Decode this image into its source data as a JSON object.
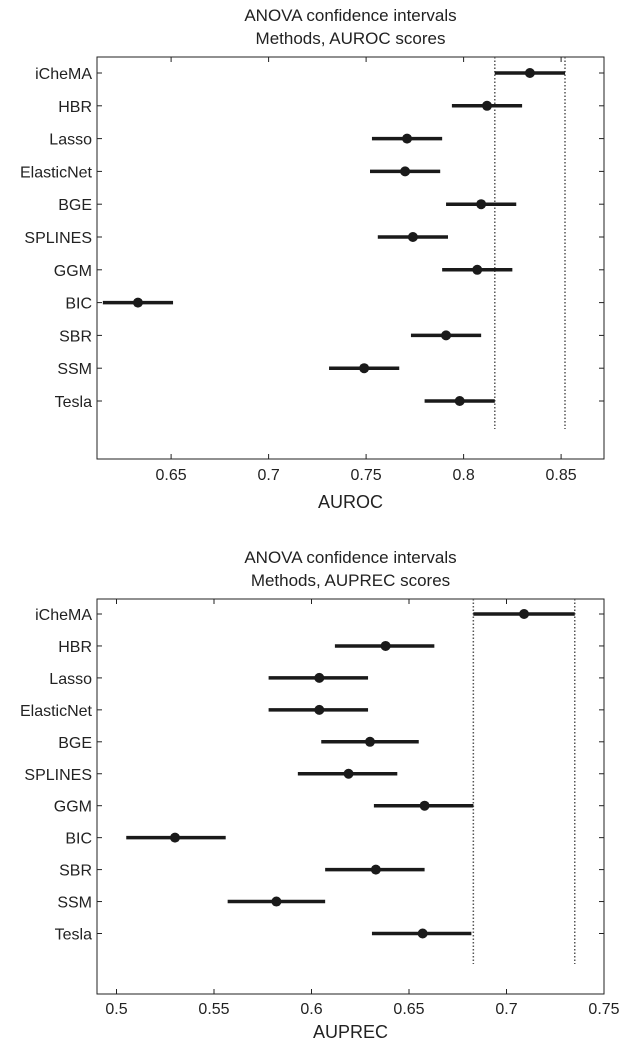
{
  "chart_data": [
    {
      "type": "errorbar",
      "title": "ANOVA confidence intervals",
      "subtitle": "Methods, AUROC scores",
      "xlabel": "AUROC",
      "ylabel": "",
      "xlim": [
        0.612,
        0.872
      ],
      "xticks": [
        0.65,
        0.7,
        0.75,
        0.8,
        0.85
      ],
      "xtick_labels": [
        "0.65",
        "0.7",
        "0.75",
        "0.8",
        "0.85"
      ],
      "categories": [
        "iCheMA",
        "HBR",
        "Lasso",
        "ElasticNet",
        "BGE",
        "SPLINES",
        "GGM",
        "BIC",
        "SBR",
        "SSM",
        "Tesla"
      ],
      "means": [
        0.834,
        0.812,
        0.771,
        0.77,
        0.809,
        0.774,
        0.807,
        0.633,
        0.791,
        0.749,
        0.798
      ],
      "lower": [
        0.816,
        0.794,
        0.753,
        0.752,
        0.791,
        0.756,
        0.789,
        0.615,
        0.773,
        0.731,
        0.78
      ],
      "upper": [
        0.852,
        0.83,
        0.789,
        0.788,
        0.827,
        0.792,
        0.825,
        0.651,
        0.809,
        0.767,
        0.816
      ],
      "reference_lines": [
        0.816,
        0.852
      ],
      "grid": false,
      "color": "#1a1a1a"
    },
    {
      "type": "errorbar",
      "title": "ANOVA confidence intervals",
      "subtitle": "Methods, AUPREC scores",
      "xlabel": "AUPREC",
      "ylabel": "",
      "xlim": [
        0.49,
        0.75
      ],
      "xticks": [
        0.5,
        0.55,
        0.6,
        0.65,
        0.7,
        0.75
      ],
      "xtick_labels": [
        "0.5",
        "0.55",
        "0.6",
        "0.65",
        "0.7",
        "0.75"
      ],
      "categories": [
        "iCheMA",
        "HBR",
        "Lasso",
        "ElasticNet",
        "BGE",
        "SPLINES",
        "GGM",
        "BIC",
        "SBR",
        "SSM",
        "Tesla"
      ],
      "means": [
        0.709,
        0.638,
        0.604,
        0.604,
        0.63,
        0.619,
        0.658,
        0.53,
        0.633,
        0.582,
        0.657
      ],
      "lower": [
        0.683,
        0.612,
        0.578,
        0.578,
        0.605,
        0.593,
        0.632,
        0.505,
        0.607,
        0.557,
        0.631
      ],
      "upper": [
        0.735,
        0.663,
        0.629,
        0.629,
        0.655,
        0.644,
        0.683,
        0.556,
        0.658,
        0.607,
        0.682
      ],
      "reference_lines": [
        0.683,
        0.735
      ],
      "grid": false,
      "color": "#1a1a1a"
    }
  ]
}
